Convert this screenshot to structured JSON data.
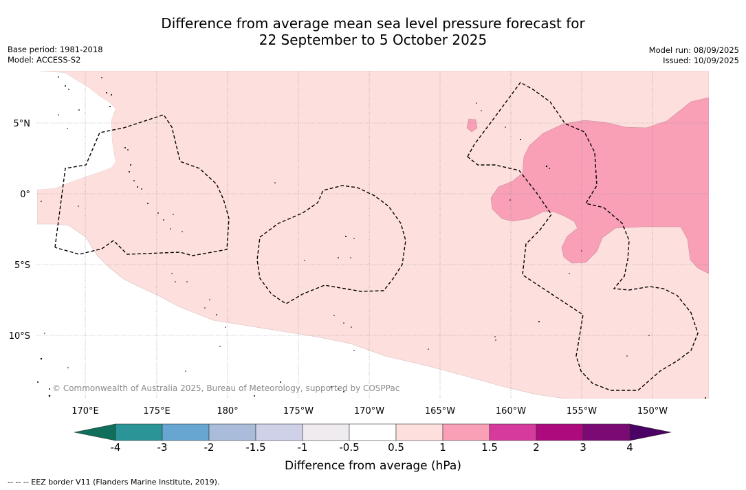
{
  "title_line1": "Difference from average mean sea level pressure forecast for",
  "title_line2": "22 September to 5 October 2025",
  "meta_left": {
    "base_period": "Base period: 1981-2018",
    "model": "Model: ACCESS-S2"
  },
  "meta_right": {
    "model_run": "Model run: 08/09/2025",
    "issued": "Issued: 10/09/2025"
  },
  "copyright": "© Commonwealth of Australia 2025, Bureau of Meteorology, supported by COSPPac",
  "lat_labels": [
    "5°N",
    "0°",
    "5°S",
    "10°S"
  ],
  "lon_labels": [
    "170°E",
    "175°E",
    "180°",
    "175°W",
    "170°W",
    "165°W",
    "160°W",
    "155°W",
    "150°W"
  ],
  "colorbar": {
    "title": "Difference from average (hPa)",
    "tick_labels": [
      "-4",
      "-3",
      "-2",
      "-1.5",
      "-1",
      "-0.5",
      "0.5",
      "1",
      "1.5",
      "2",
      "3",
      "4"
    ],
    "colors": [
      "#0f6f5a",
      "#2a9497",
      "#67a6d1",
      "#a9bcd9",
      "#cfd1e8",
      "#efebef",
      "#ffffff",
      "#fde0de",
      "#f9a0b7",
      "#d63a9c",
      "#ad0a7d",
      "#7b0a74",
      "#4a0264"
    ]
  },
  "legend_footnote": "--  --  -- EEZ border V11 (Flanders Marine Institute, 2019).",
  "shading_colors": {
    "anomaly_0_5_to_1": "#fde0de",
    "anomaly_1_to_1_5": "#f9a0b7"
  }
}
